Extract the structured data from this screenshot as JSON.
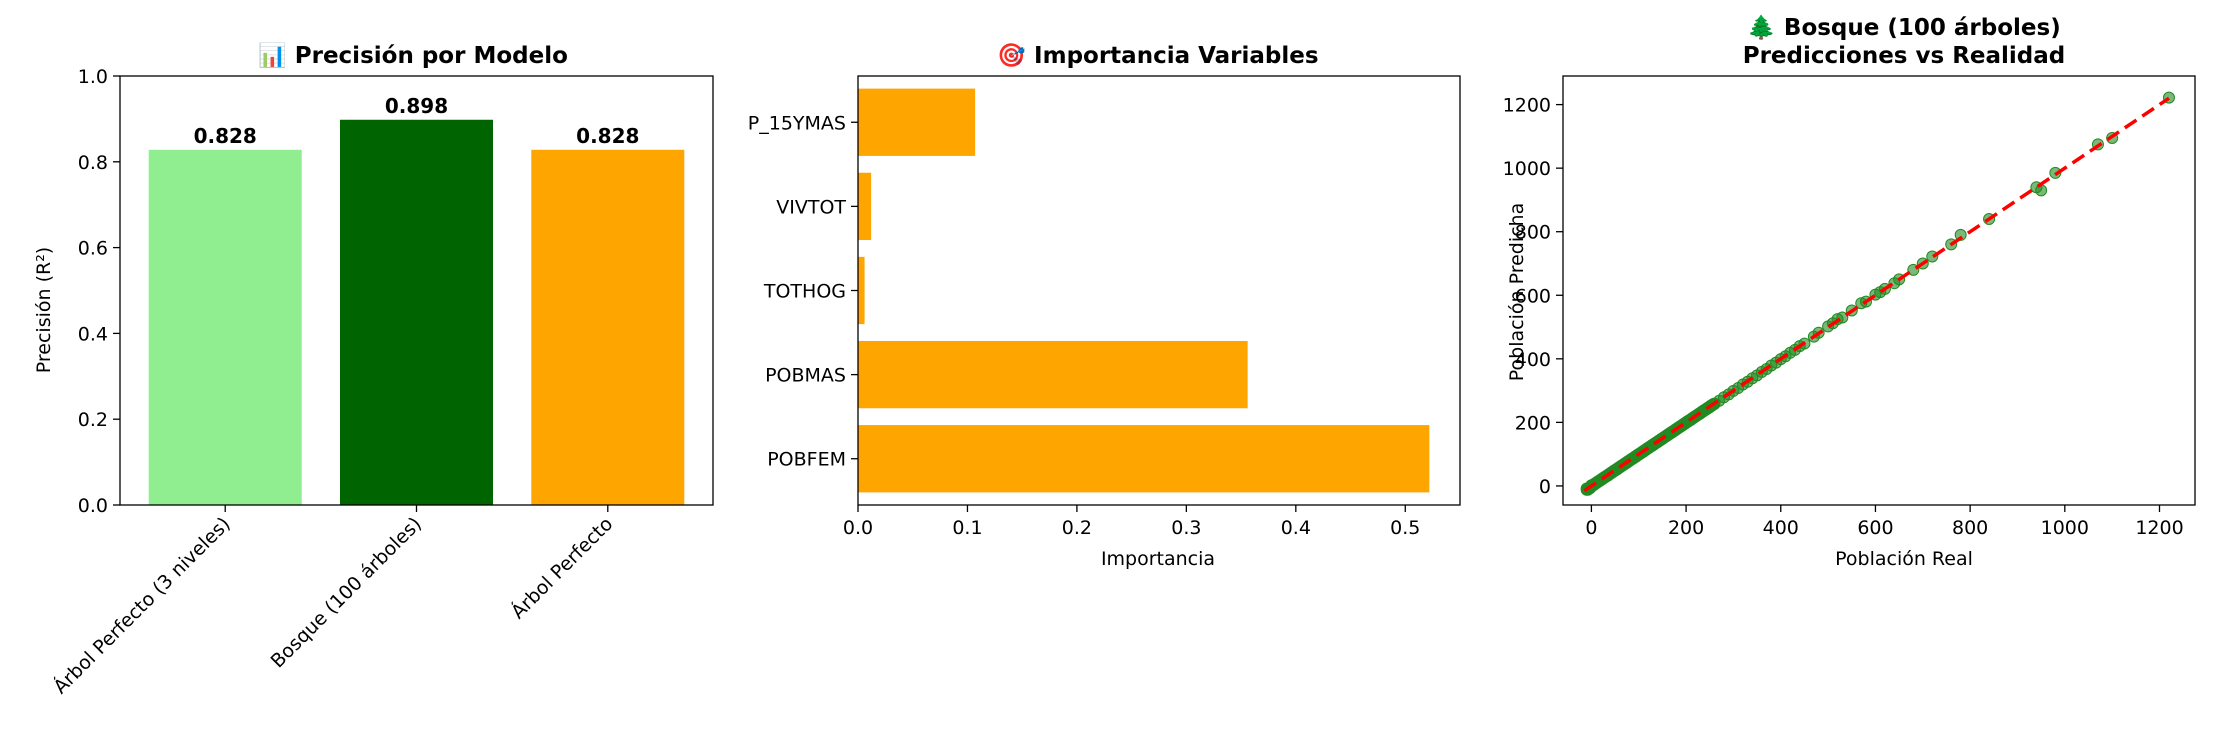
{
  "chart_data": [
    {
      "type": "bar",
      "title": "📊 Precisión por Modelo",
      "xlabel": "",
      "ylabel": "Precisión (R²)",
      "ylim": [
        0,
        1.0
      ],
      "yticks": [
        "0.0",
        "0.2",
        "0.4",
        "0.6",
        "0.8",
        "1.0"
      ],
      "categories": [
        "Árbol Perfecto (3 niveles)",
        "Bosque (100 árboles)",
        "Árbol Perfecto"
      ],
      "values": [
        0.828,
        0.898,
        0.828
      ],
      "value_labels": [
        "0.828",
        "0.898",
        "0.828"
      ],
      "colors": [
        "#90ee90",
        "#006400",
        "#ffa500"
      ],
      "grid": false
    },
    {
      "type": "bar",
      "orientation": "horizontal",
      "title": "🎯 Importancia Variables",
      "xlabel": "Importancia",
      "ylabel": "",
      "xlim": [
        0,
        0.55
      ],
      "xticks": [
        "0.0",
        "0.1",
        "0.2",
        "0.3",
        "0.4",
        "0.5"
      ],
      "categories": [
        "POBFEM",
        "POBMAS",
        "TOTHOG",
        "VIVTOT",
        "P_15YMAS"
      ],
      "values": [
        0.522,
        0.356,
        0.006,
        0.012,
        0.107
      ],
      "color": "#ffa500",
      "grid": false
    },
    {
      "type": "scatter",
      "title": "🌲 Bosque (100 árboles)",
      "subtitle": "Predicciones vs Realidad",
      "xlabel": "Población Real",
      "ylabel": "Población Predicha",
      "xlim": [
        -60,
        1275
      ],
      "ylim": [
        -60,
        1290
      ],
      "xticks": [
        "0",
        "200",
        "400",
        "600",
        "800",
        "1000",
        "1200"
      ],
      "yticks": [
        "0",
        "200",
        "400",
        "600",
        "800",
        "1000",
        "1200"
      ],
      "point_color": "#228b22",
      "reference_line_color": "#ff0000",
      "reference_line": [
        [
          -15,
          -15
        ],
        [
          1220,
          1220
        ]
      ],
      "points": [
        [
          -10,
          -8
        ],
        [
          0,
          2
        ],
        [
          5,
          3
        ],
        [
          10,
          9
        ],
        [
          15,
          14
        ],
        [
          20,
          19
        ],
        [
          25,
          24
        ],
        [
          30,
          29
        ],
        [
          35,
          33
        ],
        [
          40,
          39
        ],
        [
          45,
          44
        ],
        [
          50,
          49
        ],
        [
          55,
          53
        ],
        [
          60,
          59
        ],
        [
          65,
          64
        ],
        [
          70,
          69
        ],
        [
          75,
          73
        ],
        [
          80,
          79
        ],
        [
          85,
          84
        ],
        [
          90,
          89
        ],
        [
          95,
          93
        ],
        [
          100,
          99
        ],
        [
          110,
          108
        ],
        [
          120,
          119
        ],
        [
          130,
          128
        ],
        [
          140,
          139
        ],
        [
          150,
          148
        ],
        [
          160,
          159
        ],
        [
          170,
          168
        ],
        [
          180,
          179
        ],
        [
          190,
          188
        ],
        [
          200,
          199
        ],
        [
          210,
          208
        ],
        [
          220,
          219
        ],
        [
          230,
          228
        ],
        [
          240,
          239
        ],
        [
          250,
          248
        ],
        [
          260,
          259
        ],
        [
          270,
          268
        ],
        [
          280,
          279
        ],
        [
          290,
          288
        ],
        [
          300,
          299
        ],
        [
          310,
          308
        ],
        [
          320,
          319
        ],
        [
          330,
          328
        ],
        [
          340,
          339
        ],
        [
          350,
          348
        ],
        [
          360,
          359
        ],
        [
          370,
          368
        ],
        [
          380,
          379
        ],
        [
          390,
          388
        ],
        [
          400,
          399
        ],
        [
          410,
          408
        ],
        [
          420,
          419
        ],
        [
          430,
          428
        ],
        [
          440,
          440
        ],
        [
          450,
          448
        ],
        [
          470,
          470
        ],
        [
          480,
          482
        ],
        [
          500,
          502
        ],
        [
          510,
          512
        ],
        [
          520,
          525
        ],
        [
          530,
          530
        ],
        [
          550,
          552
        ],
        [
          570,
          575
        ],
        [
          580,
          580
        ],
        [
          600,
          602
        ],
        [
          610,
          610
        ],
        [
          620,
          620
        ],
        [
          640,
          638
        ],
        [
          650,
          650
        ],
        [
          680,
          680
        ],
        [
          700,
          700
        ],
        [
          720,
          722
        ],
        [
          760,
          760
        ],
        [
          780,
          790
        ],
        [
          840,
          840
        ],
        [
          940,
          940
        ],
        [
          950,
          930
        ],
        [
          980,
          985
        ],
        [
          1070,
          1075
        ],
        [
          1100,
          1095
        ],
        [
          1220,
          1222
        ]
      ]
    }
  ]
}
